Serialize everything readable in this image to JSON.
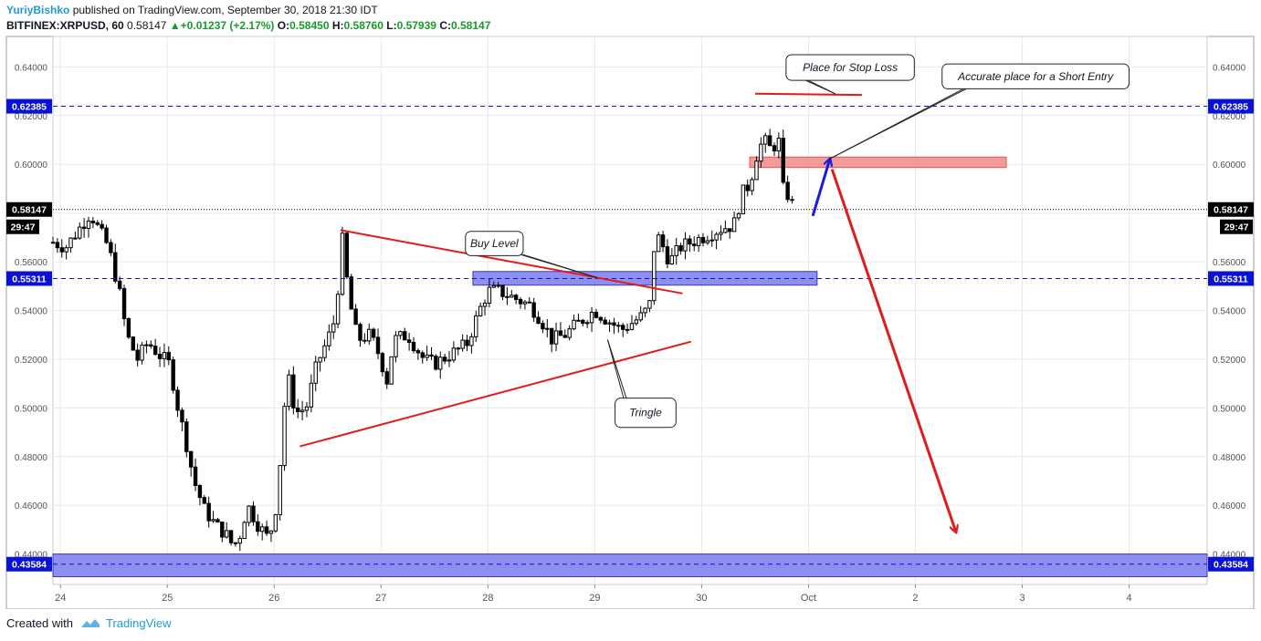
{
  "header": {
    "author": "YuriyBishko",
    "published_text": "published on TradingView.com, September 30, 2018 21:30 IDT",
    "symbol": "BITFINEX:XRPUSD, 60",
    "last": "0.58147",
    "change": "+0.01237 (+2.17%)",
    "open_label": "O:",
    "open": "0.58450",
    "high_label": "H:",
    "high": "0.58760",
    "low_label": "L:",
    "low": "0.57939",
    "close_label": "C:",
    "close": "0.58147"
  },
  "footer": {
    "created_with": "Created with",
    "brand": "TradingView"
  },
  "chart_data": {
    "type": "candlestick",
    "symbol": "BITFINEX:XRPUSD",
    "interval": "60",
    "x_ticks": [
      {
        "label": "24",
        "day": 24
      },
      {
        "label": "25",
        "day": 25
      },
      {
        "label": "26",
        "day": 26
      },
      {
        "label": "27",
        "day": 27
      },
      {
        "label": "28",
        "day": 28
      },
      {
        "label": "29",
        "day": 29
      },
      {
        "label": "30",
        "day": 30
      },
      {
        "label": "Oct",
        "day": 31
      },
      {
        "label": "2",
        "day": 32
      },
      {
        "label": "3",
        "day": 33
      },
      {
        "label": "4",
        "day": 34
      }
    ],
    "y_ticks": [
      "0.44000",
      "0.46000",
      "0.48000",
      "0.50000",
      "0.52000",
      "0.54000",
      "0.56000",
      "0.58000",
      "0.60000",
      "0.62000",
      "0.64000"
    ],
    "ylim": [
      0.4275,
      0.6525
    ],
    "xlim": [
      23.93,
      34.73
    ],
    "grid": true,
    "price_labels": [
      {
        "value": 0.62385,
        "text": "0.62385",
        "color": "#0a12d6",
        "dashed": true
      },
      {
        "value": 0.58147,
        "text": "0.58147",
        "color": "#000000",
        "dashed": true,
        "dotted": true,
        "countdown": "29:47"
      },
      {
        "value": 0.55311,
        "text": "0.55311",
        "color": "#0a12d6",
        "dashed": true
      },
      {
        "value": 0.43584,
        "text": "0.43584",
        "color": "#0a12d6",
        "dashed": true
      }
    ],
    "price_path": [
      [
        23.93,
        0.568
      ],
      [
        24.05,
        0.566
      ],
      [
        24.15,
        0.572
      ],
      [
        24.28,
        0.58
      ],
      [
        24.35,
        0.574
      ],
      [
        24.45,
        0.566
      ],
      [
        24.55,
        0.548
      ],
      [
        24.62,
        0.53
      ],
      [
        24.72,
        0.52
      ],
      [
        24.82,
        0.527
      ],
      [
        24.92,
        0.522
      ],
      [
        25.02,
        0.518
      ],
      [
        25.1,
        0.5
      ],
      [
        25.18,
        0.485
      ],
      [
        25.25,
        0.47
      ],
      [
        25.35,
        0.458
      ],
      [
        25.45,
        0.452
      ],
      [
        25.55,
        0.448
      ],
      [
        25.62,
        0.443
      ],
      [
        25.68,
        0.448
      ],
      [
        25.75,
        0.46
      ],
      [
        25.85,
        0.452
      ],
      [
        25.95,
        0.446
      ],
      [
        26.02,
        0.46
      ],
      [
        26.07,
        0.485
      ],
      [
        26.12,
        0.515
      ],
      [
        26.2,
        0.498
      ],
      [
        26.3,
        0.5
      ],
      [
        26.4,
        0.518
      ],
      [
        26.5,
        0.528
      ],
      [
        26.58,
        0.538
      ],
      [
        26.63,
        0.572
      ],
      [
        26.7,
        0.545
      ],
      [
        26.78,
        0.528
      ],
      [
        26.9,
        0.53
      ],
      [
        27.0,
        0.52
      ],
      [
        27.05,
        0.51
      ],
      [
        27.12,
        0.528
      ],
      [
        27.25,
        0.53
      ],
      [
        27.4,
        0.52
      ],
      [
        27.5,
        0.518
      ],
      [
        27.65,
        0.522
      ],
      [
        27.8,
        0.526
      ],
      [
        27.92,
        0.54
      ],
      [
        28.0,
        0.548
      ],
      [
        28.1,
        0.548
      ],
      [
        28.25,
        0.545
      ],
      [
        28.4,
        0.542
      ],
      [
        28.5,
        0.536
      ],
      [
        28.6,
        0.528
      ],
      [
        28.72,
        0.53
      ],
      [
        28.85,
        0.535
      ],
      [
        29.0,
        0.54
      ],
      [
        29.12,
        0.536
      ],
      [
        29.25,
        0.532
      ],
      [
        29.35,
        0.535
      ],
      [
        29.45,
        0.538
      ],
      [
        29.52,
        0.543
      ],
      [
        29.55,
        0.565
      ],
      [
        29.6,
        0.57
      ],
      [
        29.7,
        0.56
      ],
      [
        29.8,
        0.566
      ],
      [
        29.9,
        0.568
      ],
      [
        30.0,
        0.57
      ],
      [
        30.1,
        0.572
      ],
      [
        30.2,
        0.574
      ],
      [
        30.3,
        0.575
      ],
      [
        30.38,
        0.588
      ],
      [
        30.45,
        0.592
      ],
      [
        30.52,
        0.605
      ],
      [
        30.58,
        0.61
      ],
      [
        30.65,
        0.606
      ],
      [
        30.72,
        0.61
      ],
      [
        30.76,
        0.59
      ],
      [
        30.8,
        0.588
      ],
      [
        30.87,
        0.5815
      ]
    ],
    "zones": [
      {
        "name": "stop-zone",
        "x0": 30.45,
        "x1": 32.85,
        "y0": 0.5987,
        "y1": 0.603,
        "fill": "#f08a8a",
        "stroke": "#e05555"
      },
      {
        "name": "buy-zone",
        "x0": 27.86,
        "x1": 31.08,
        "y0": 0.5504,
        "y1": 0.556,
        "fill": "#7b7bf0",
        "stroke": "#3434c8"
      },
      {
        "name": "bottom-zone",
        "x0": 23.93,
        "x1": 34.73,
        "y0": 0.4307,
        "y1": 0.44,
        "fill": "#7b7bf0",
        "stroke": "#3434c8"
      }
    ],
    "lines": [
      {
        "name": "triangle-upper",
        "p": [
          [
            26.62,
            0.573
          ],
          [
            29.82,
            0.547
          ]
        ],
        "color": "#e41a1a",
        "width": 2
      },
      {
        "name": "triangle-lower",
        "p": [
          [
            26.24,
            0.4842
          ],
          [
            29.9,
            0.5272
          ]
        ],
        "color": "#e41a1a",
        "width": 2
      },
      {
        "name": "stop-loss-line",
        "p": [
          [
            30.5,
            0.629
          ],
          [
            31.5,
            0.6285
          ]
        ],
        "color": "#e41a1a",
        "width": 2
      },
      {
        "name": "entry-blue-arrow",
        "p": [
          [
            31.04,
            0.5788
          ],
          [
            31.2,
            0.6022
          ]
        ],
        "color": "#1a1ae0",
        "width": 3,
        "arrow": true
      },
      {
        "name": "target-red-arrow",
        "p": [
          [
            31.22,
            0.598
          ],
          [
            32.38,
            0.449
          ]
        ],
        "color": "#e41a1a",
        "width": 3,
        "arrow": true
      }
    ],
    "annotations": [
      {
        "name": "callout-stop-loss",
        "text": "Place for Stop Loss",
        "box": [
          30.79,
          0.645,
          31.99,
          0.6345
        ],
        "pointer": [
          30.97,
          0.6345,
          31.25,
          0.629
        ]
      },
      {
        "name": "callout-short-entry",
        "text": "Accurate place for a Short Entry",
        "box": [
          32.25,
          0.6412,
          34.0,
          0.631
        ],
        "pointer": [
          32.45,
          0.631,
          31.2,
          0.6023
        ]
      },
      {
        "name": "callout-buy-level",
        "text": "Buy Level",
        "box": [
          27.79,
          0.5725,
          28.33,
          0.5625
        ],
        "pointer": [
          28.3,
          0.563,
          29.02,
          0.5535
        ]
      },
      {
        "name": "callout-tringle",
        "text": "Tringle",
        "box": [
          29.19,
          0.504,
          29.76,
          0.492
        ],
        "pointer": [
          29.27,
          0.504,
          29.12,
          0.528
        ]
      }
    ]
  }
}
